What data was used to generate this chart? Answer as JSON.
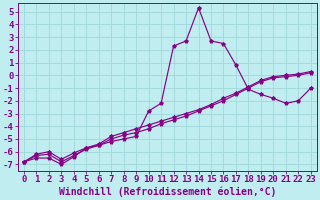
{
  "xlabel": "Windchill (Refroidissement éolien,°C)",
  "background_color": "#c0eef0",
  "grid_color": "#a0d8dc",
  "line_color": "#880088",
  "x_hours": [
    0,
    1,
    2,
    3,
    4,
    5,
    6,
    7,
    8,
    9,
    10,
    11,
    12,
    13,
    14,
    15,
    16,
    17,
    18,
    19,
    20,
    21,
    22,
    23
  ],
  "series1": [
    -6.8,
    -6.5,
    -6.5,
    -7.0,
    -6.4,
    -5.7,
    -5.5,
    -5.2,
    -5.0,
    -4.8,
    -2.8,
    -2.2,
    2.3,
    2.7,
    5.3,
    2.7,
    2.5,
    0.8,
    -1.1,
    -1.5,
    -1.8,
    -2.2,
    -2.0,
    -1.0
  ],
  "series2": [
    -6.8,
    -6.3,
    -6.2,
    -6.8,
    -6.3,
    -5.8,
    -5.5,
    -5.0,
    -4.7,
    -4.5,
    -4.2,
    -3.8,
    -3.5,
    -3.2,
    -2.8,
    -2.4,
    -2.0,
    -1.5,
    -1.0,
    -0.5,
    -0.2,
    -0.1,
    0.0,
    0.2
  ],
  "series3": [
    -6.8,
    -6.2,
    -6.0,
    -6.6,
    -6.1,
    -5.7,
    -5.4,
    -4.8,
    -4.5,
    -4.2,
    -3.9,
    -3.6,
    -3.3,
    -3.0,
    -2.7,
    -2.3,
    -1.8,
    -1.4,
    -0.9,
    -0.4,
    -0.1,
    0.0,
    0.1,
    0.3
  ],
  "ylim": [
    -7.5,
    5.7
  ],
  "yticks": [
    -7,
    -6,
    -5,
    -4,
    -3,
    -2,
    -1,
    0,
    1,
    2,
    3,
    4,
    5
  ],
  "font_size": 6.5,
  "xlabel_font_size": 7.0
}
